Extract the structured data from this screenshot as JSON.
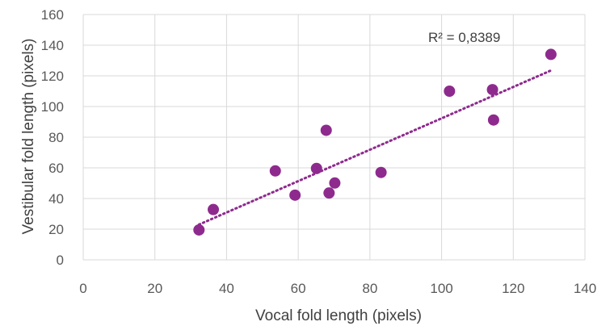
{
  "chart_data": {
    "type": "scatter",
    "title": "",
    "xlabel": "Vocal fold length (pixels)",
    "ylabel": "Vestibular fold length (pixels)",
    "xlim": [
      0,
      140
    ],
    "ylim": [
      0,
      160
    ],
    "x_ticks": [
      "0",
      "20",
      "40",
      "60",
      "80",
      "100",
      "120",
      "140"
    ],
    "y_ticks": [
      "0",
      "20",
      "40",
      "60",
      "80",
      "100",
      "120",
      "140",
      "160"
    ],
    "grid": true,
    "legend": "none",
    "series": [
      {
        "color": "#8e2a8e",
        "points": [
          {
            "x": 32.3,
            "y": 19.5
          },
          {
            "x": 36.3,
            "y": 32.8
          },
          {
            "x": 53.6,
            "y": 58.0
          },
          {
            "x": 59.1,
            "y": 42.2
          },
          {
            "x": 65.1,
            "y": 59.6
          },
          {
            "x": 67.8,
            "y": 84.5
          },
          {
            "x": 68.6,
            "y": 43.6
          },
          {
            "x": 70.2,
            "y": 50.1
          },
          {
            "x": 83.1,
            "y": 57.0
          },
          {
            "x": 102.2,
            "y": 110.0
          },
          {
            "x": 114.2,
            "y": 111.0
          },
          {
            "x": 114.5,
            "y": 91.2
          },
          {
            "x": 130.5,
            "y": 134.0
          }
        ]
      }
    ],
    "trendline": {
      "type": "linear",
      "style": "dotted",
      "color": "#8e2a8e",
      "from": {
        "x": 32.3,
        "y": 23.0
      },
      "to": {
        "x": 130.5,
        "y": 123.5
      }
    },
    "annotation": "R² = 0,8389"
  }
}
